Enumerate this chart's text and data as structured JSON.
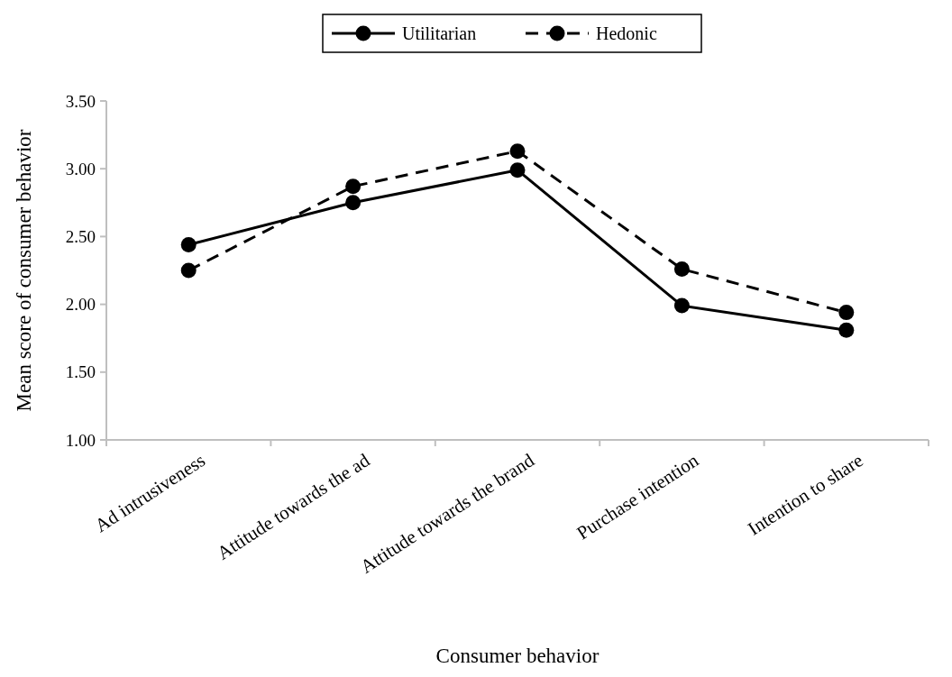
{
  "chart_data": {
    "type": "line",
    "xlabel": "Consumer behavior",
    "ylabel": "Mean score of consumer behavior",
    "categories": [
      "Ad intrusiveness",
      "Attitude towards the ad",
      "Attitude towards the brand",
      "Purchase intention",
      "Intention to share"
    ],
    "series": [
      {
        "name": "Utilitarian",
        "color": "#000000",
        "line_style": "solid",
        "values": [
          2.44,
          2.75,
          2.99,
          1.99,
          1.81
        ]
      },
      {
        "name": "Hedonic",
        "color": "#000000",
        "line_style": "dashed",
        "values": [
          2.25,
          2.87,
          3.13,
          2.26,
          1.94
        ]
      }
    ],
    "ylim": [
      1,
      3.5
    ],
    "yticks": [
      {
        "value": 1,
        "label": "1.00"
      },
      {
        "value": 1.5,
        "label": "1.50"
      },
      {
        "value": 2,
        "label": "2.00"
      },
      {
        "value": 2.5,
        "label": "2.50"
      },
      {
        "value": 3,
        "label": "3.00"
      },
      {
        "value": 3.5,
        "label": "3.50"
      }
    ],
    "marker": "circle",
    "legend": "top",
    "grid": false
  }
}
